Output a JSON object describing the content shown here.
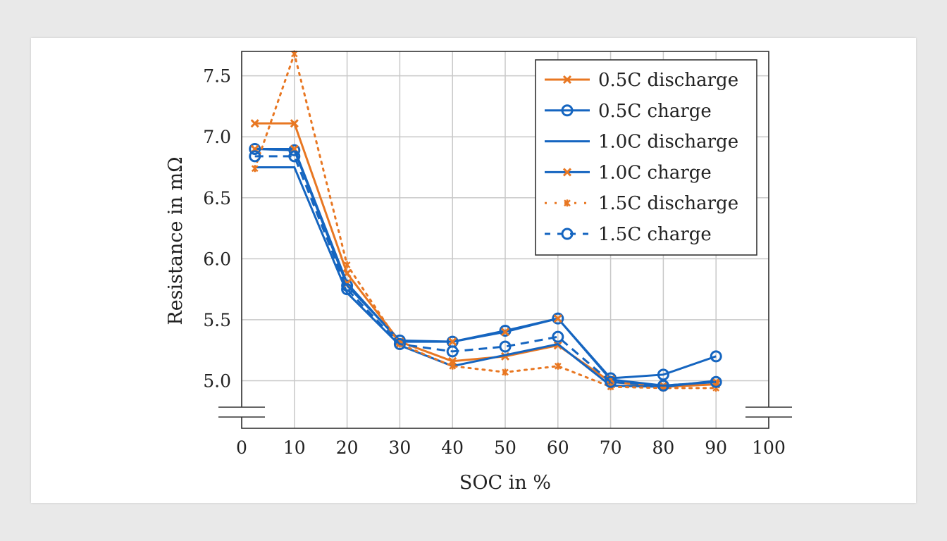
{
  "chart_data": {
    "type": "line",
    "xlabel": "SOC in %",
    "ylabel": "Resistance in mΩ",
    "xlim": [
      0,
      100
    ],
    "ylim": [
      4.61,
      7.7
    ],
    "y_axis_break": true,
    "grid": true,
    "legend_position": "top-right",
    "xticks": [
      0,
      10,
      20,
      30,
      40,
      50,
      60,
      70,
      80,
      90,
      100
    ],
    "yticks": [
      5.0,
      5.5,
      6.0,
      6.5,
      7.0,
      7.5
    ],
    "ytick_labels": [
      "5.0",
      "5.5",
      "6.0",
      "6.5",
      "7.0",
      "7.5"
    ],
    "x": [
      2.5,
      10,
      20,
      30,
      40,
      50,
      60,
      70,
      80,
      90
    ],
    "colors": {
      "orange": "#e87722",
      "blue": "#1565c0"
    },
    "series": [
      {
        "name": "0.5C discharge",
        "color": "#e87722",
        "line": "solid",
        "marker": "x",
        "marker_color": "#e87722",
        "values": [
          7.11,
          7.11,
          5.88,
          5.32,
          5.16,
          5.2,
          5.29,
          4.99,
          4.95,
          4.97
        ]
      },
      {
        "name": "0.5C charge",
        "color": "#1565c0",
        "line": "solid",
        "marker": "o",
        "marker_color": "#1565c0",
        "values": [
          6.9,
          6.89,
          5.78,
          5.33,
          5.32,
          5.41,
          5.51,
          5.02,
          5.05,
          5.2
        ]
      },
      {
        "name": "1.0C discharge",
        "color": "#1565c0",
        "line": "solid",
        "marker": "none",
        "marker_color": "#1565c0",
        "values": [
          6.75,
          6.75,
          5.72,
          5.29,
          5.12,
          5.21,
          5.3,
          4.96,
          4.95,
          5.0
        ]
      },
      {
        "name": "1.0C charge",
        "color": "#1565c0",
        "line": "solid",
        "marker": "x",
        "marker_color": "#e87722",
        "values": [
          6.9,
          6.9,
          5.8,
          5.32,
          5.32,
          5.4,
          5.51,
          5.01,
          4.96,
          4.99
        ]
      },
      {
        "name": "1.5C discharge",
        "color": "#e87722",
        "line": "dotted",
        "marker": "star",
        "marker_color": "#e87722",
        "values": [
          6.74,
          7.68,
          5.95,
          5.3,
          5.12,
          5.07,
          5.12,
          4.95,
          4.94,
          4.94
        ]
      },
      {
        "name": "1.5C charge",
        "color": "#1565c0",
        "line": "dashed",
        "marker": "o",
        "marker_color": "#1565c0",
        "values": [
          6.84,
          6.84,
          5.75,
          5.3,
          5.24,
          5.28,
          5.36,
          4.99,
          4.96,
          4.99
        ]
      }
    ]
  }
}
